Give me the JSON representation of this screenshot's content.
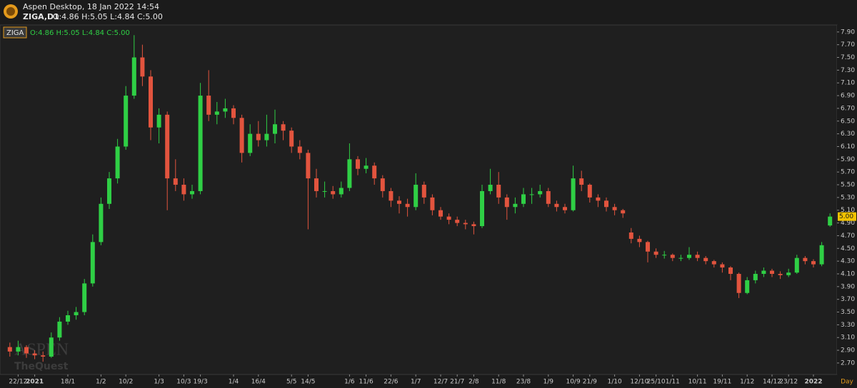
{
  "header": {
    "app_title": "Aspen Desktop, 18 Jan 2022 14:54",
    "symbol": "ZIGA,D1",
    "ohlc": "O:4.86 H:5.05 L:4.84 C:5.00"
  },
  "chart_data": {
    "type": "candlestick",
    "symbol": "ZIGA",
    "ohlc_label": "O:4.86 H:5.05 L:4.84 C:5.00",
    "watermark": [
      "ASPEN",
      "TheQuest"
    ],
    "price_tag": "5.00",
    "timeframe": "Day",
    "up_color": "#2fcf45",
    "down_color": "#e2543e",
    "grid": false,
    "categories": [
      null,
      "22/12",
      null,
      "2021",
      null,
      null,
      null,
      "18/1",
      null,
      null,
      null,
      "1/2",
      null,
      null,
      "10/2",
      null,
      null,
      null,
      "1/3",
      null,
      null,
      "10/3",
      null,
      "19/3",
      null,
      null,
      null,
      "1/4",
      null,
      null,
      "16/4",
      null,
      null,
      null,
      "5/5",
      null,
      "14/5",
      null,
      null,
      null,
      null,
      "1/6",
      null,
      "11/6",
      null,
      null,
      "22/6",
      null,
      null,
      "1/7",
      null,
      null,
      "12/7",
      null,
      "21/7",
      null,
      "2/8",
      null,
      null,
      "11/8",
      null,
      null,
      "23/8",
      null,
      null,
      "1/9",
      null,
      null,
      "10/9",
      null,
      "21/9",
      null,
      null,
      "1/10",
      null,
      null,
      "12/10",
      null,
      "25/10",
      null,
      "1/11",
      null,
      null,
      "10/11",
      null,
      null,
      "19/11",
      null,
      null,
      "1/12",
      null,
      null,
      "14/12",
      null,
      "23/12",
      null,
      null,
      "2022",
      null,
      null
    ],
    "open": [
      2.95,
      2.88,
      2.95,
      2.85,
      2.82,
      2.8,
      3.1,
      3.35,
      3.45,
      3.5,
      3.95,
      4.6,
      5.2,
      5.6,
      6.1,
      6.9,
      7.5,
      7.2,
      6.4,
      6.6,
      5.6,
      5.5,
      5.35,
      5.4,
      6.9,
      6.6,
      6.65,
      6.7,
      6.55,
      6.0,
      6.3,
      6.2,
      6.3,
      6.45,
      6.35,
      6.1,
      6.0,
      5.6,
      5.4,
      5.4,
      5.35,
      5.45,
      5.9,
      5.75,
      5.8,
      5.6,
      5.4,
      5.25,
      5.2,
      5.15,
      5.5,
      5.3,
      5.1,
      5.0,
      4.95,
      4.9,
      4.88,
      4.85,
      5.4,
      5.5,
      5.3,
      5.15,
      5.2,
      5.35,
      5.35,
      5.4,
      5.2,
      5.15,
      5.1,
      5.6,
      5.5,
      5.3,
      5.25,
      5.15,
      5.1,
      4.75,
      4.65,
      4.6,
      4.45,
      4.4,
      4.4,
      4.35,
      4.35,
      4.4,
      4.35,
      4.3,
      4.25,
      4.2,
      4.1,
      3.8,
      4.0,
      4.1,
      4.15,
      4.1,
      4.08,
      4.12,
      4.35,
      4.3,
      4.25,
      4.86
    ],
    "high": [
      3.02,
      3.05,
      2.98,
      2.9,
      2.88,
      3.18,
      3.42,
      3.52,
      3.58,
      4.02,
      4.72,
      5.3,
      5.7,
      6.22,
      7.05,
      7.85,
      7.7,
      7.3,
      6.7,
      6.65,
      5.9,
      5.6,
      5.5,
      7.1,
      7.3,
      6.8,
      6.85,
      6.75,
      6.6,
      6.45,
      6.5,
      6.6,
      6.68,
      6.5,
      6.4,
      6.2,
      6.05,
      5.75,
      5.55,
      5.48,
      5.55,
      6.15,
      5.95,
      5.92,
      5.85,
      5.65,
      5.45,
      5.32,
      5.28,
      5.68,
      5.55,
      5.35,
      5.15,
      5.05,
      5.0,
      4.95,
      4.92,
      5.5,
      5.75,
      5.7,
      5.35,
      5.3,
      5.45,
      5.45,
      5.5,
      5.45,
      5.25,
      5.2,
      5.8,
      5.72,
      5.52,
      5.35,
      5.3,
      5.2,
      5.12,
      4.82,
      4.7,
      4.62,
      4.5,
      4.46,
      4.42,
      4.4,
      4.52,
      4.45,
      4.38,
      4.32,
      4.28,
      4.22,
      4.12,
      4.05,
      4.15,
      4.2,
      4.18,
      4.14,
      4.18,
      4.4,
      4.38,
      4.33,
      4.6,
      5.05
    ],
    "low": [
      2.8,
      2.82,
      2.78,
      2.76,
      2.72,
      2.78,
      3.05,
      3.3,
      3.38,
      3.45,
      3.9,
      4.55,
      5.12,
      5.52,
      6.05,
      6.85,
      7.05,
      6.2,
      6.15,
      5.1,
      5.4,
      5.25,
      5.28,
      5.35,
      6.5,
      6.45,
      6.55,
      6.45,
      5.85,
      5.95,
      6.1,
      6.1,
      6.15,
      6.2,
      6.0,
      5.9,
      4.8,
      5.3,
      5.3,
      5.28,
      5.3,
      5.4,
      5.65,
      5.68,
      5.5,
      5.3,
      5.15,
      5.05,
      5.0,
      5.1,
      5.2,
      5.02,
      4.95,
      4.88,
      4.85,
      4.8,
      4.72,
      4.82,
      5.35,
      5.2,
      4.95,
      5.05,
      5.15,
      5.2,
      5.3,
      5.15,
      5.08,
      5.05,
      5.08,
      5.4,
      5.22,
      5.15,
      5.08,
      5.02,
      4.98,
      4.58,
      4.52,
      4.28,
      4.35,
      4.34,
      4.3,
      4.3,
      4.32,
      4.3,
      4.25,
      4.2,
      4.12,
      4.0,
      3.72,
      3.78,
      3.95,
      4.05,
      4.05,
      4.02,
      4.05,
      4.1,
      4.25,
      4.2,
      4.22,
      4.84
    ],
    "close": [
      2.88,
      2.95,
      2.85,
      2.82,
      2.8,
      3.1,
      3.35,
      3.45,
      3.5,
      3.95,
      4.6,
      5.2,
      5.6,
      6.1,
      6.9,
      7.5,
      7.2,
      6.4,
      6.6,
      5.6,
      5.5,
      5.35,
      5.4,
      6.9,
      6.6,
      6.65,
      6.7,
      6.55,
      6.0,
      6.3,
      6.2,
      6.3,
      6.45,
      6.35,
      6.1,
      6.0,
      5.6,
      5.4,
      5.4,
      5.35,
      5.45,
      5.9,
      5.75,
      5.8,
      5.6,
      5.4,
      5.25,
      5.2,
      5.15,
      5.5,
      5.3,
      5.1,
      5.0,
      4.95,
      4.9,
      4.88,
      4.85,
      5.4,
      5.5,
      5.3,
      5.15,
      5.2,
      5.35,
      5.35,
      5.4,
      5.2,
      5.15,
      5.1,
      5.6,
      5.5,
      5.3,
      5.25,
      5.15,
      5.1,
      5.05,
      4.65,
      4.6,
      4.45,
      4.4,
      4.4,
      4.35,
      4.35,
      4.4,
      4.35,
      4.3,
      4.25,
      4.2,
      4.1,
      3.8,
      4.0,
      4.1,
      4.15,
      4.1,
      4.08,
      4.12,
      4.35,
      4.3,
      4.25,
      4.55,
      5.0
    ],
    "ylim": [
      2.52,
      8.01
    ],
    "yticks": [
      {
        "value": 2.7,
        "label": "2.70"
      },
      {
        "value": 2.9,
        "label": "2.90"
      },
      {
        "value": 3.1,
        "label": "3.10"
      },
      {
        "value": 3.3,
        "label": "3.30"
      },
      {
        "value": 3.5,
        "label": "3.50"
      },
      {
        "value": 3.7,
        "label": "3.70"
      },
      {
        "value": 3.9,
        "label": "3.90"
      },
      {
        "value": 4.1,
        "label": "4.10"
      },
      {
        "value": 4.3,
        "label": "4.30"
      },
      {
        "value": 4.5,
        "label": "4.50"
      },
      {
        "value": 4.7,
        "label": "4.70"
      },
      {
        "value": 4.9,
        "label": "4.90"
      },
      {
        "value": 5.1,
        "label": "5.10"
      },
      {
        "value": 5.3,
        "label": "5.30"
      },
      {
        "value": 5.5,
        "label": "5.50"
      },
      {
        "value": 5.7,
        "label": "5.70"
      },
      {
        "value": 5.9,
        "label": "5.90"
      },
      {
        "value": 6.1,
        "label": "6.10"
      },
      {
        "value": 6.3,
        "label": "6.30"
      },
      {
        "value": 6.5,
        "label": "6.50"
      },
      {
        "value": 6.7,
        "label": "6.70"
      },
      {
        "value": 6.9,
        "label": "6.90"
      },
      {
        "value": 7.1,
        "label": "7.10"
      },
      {
        "value": 7.3,
        "label": "7.30"
      },
      {
        "value": 7.5,
        "label": "7.50"
      },
      {
        "value": 7.7,
        "label": "7.70"
      },
      {
        "value": 7.9,
        "label": "7.90"
      }
    ]
  }
}
